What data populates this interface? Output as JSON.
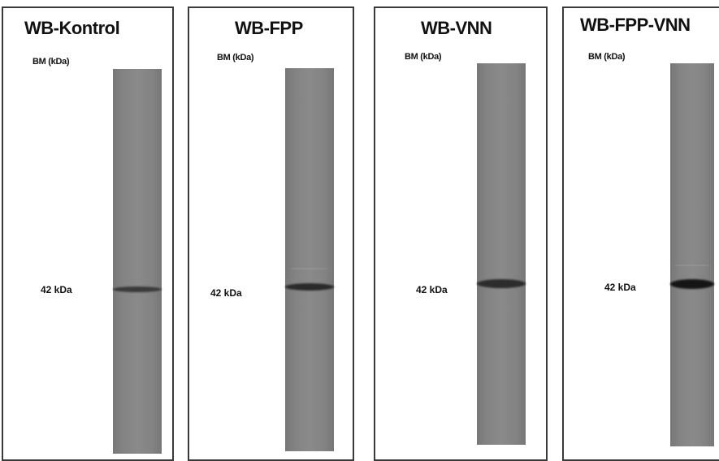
{
  "panels": [
    {
      "id": "kontrol",
      "title": "WB-Kontrol",
      "bm_label": "BM (kDa)",
      "band_label": "42 kDa",
      "band_color": "#3a3a3a"
    },
    {
      "id": "fpp",
      "title": "WB-FPP",
      "bm_label": "BM (kDa)",
      "band_label": "42 kDa",
      "band_color": "#2a2a2a"
    },
    {
      "id": "vnn",
      "title": "WB-VNN",
      "bm_label": "BM (kDa)",
      "band_label": "42 kDa",
      "band_color": "#2c2c2c"
    },
    {
      "id": "fpp-vnn",
      "title": "WB-FPP-VNN",
      "bm_label": "BM (kDa)",
      "band_label": "42 kDa",
      "band_color": "#151515"
    }
  ]
}
